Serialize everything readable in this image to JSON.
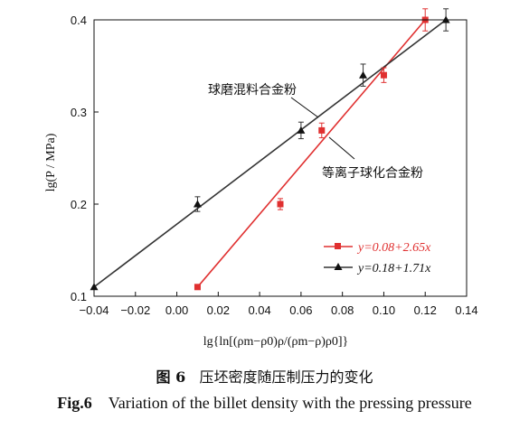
{
  "chart_data": {
    "type": "scatter",
    "xlabel": "lg{ln[(ρm−ρ0)ρ/(ρm−ρ)ρ0]}",
    "ylabel": "lg(P / MPa)",
    "xlim": [
      -0.04,
      0.14
    ],
    "ylim": [
      0.1,
      0.4
    ],
    "x_ticks": [
      "−0.04",
      "−0.02",
      "0.00",
      "0.02",
      "0.04",
      "0.06",
      "0.08",
      "0.10",
      "0.12",
      "0.14"
    ],
    "y_ticks": [
      "0.1",
      "0.2",
      "0.3",
      "0.4"
    ],
    "series": [
      {
        "name": "等离子球化合金粉",
        "color": "#e03030",
        "marker": "square",
        "fit": "y=0.08+2.65x",
        "points": [
          {
            "x": 0.01,
            "y": 0.11,
            "err": 0.0
          },
          {
            "x": 0.05,
            "y": 0.2,
            "err": 0.006
          },
          {
            "x": 0.07,
            "y": 0.28,
            "err": 0.008
          },
          {
            "x": 0.1,
            "y": 0.34,
            "err": 0.008
          },
          {
            "x": 0.12,
            "y": 0.4,
            "err": 0.012
          }
        ]
      },
      {
        "name": "球磨混料合金粉",
        "color": "#333333",
        "marker": "triangle",
        "fit": "y=0.18+1.71x",
        "points": [
          {
            "x": -0.04,
            "y": 0.11,
            "err": 0.0
          },
          {
            "x": 0.01,
            "y": 0.2,
            "err": 0.008
          },
          {
            "x": 0.06,
            "y": 0.28,
            "err": 0.009
          },
          {
            "x": 0.09,
            "y": 0.34,
            "err": 0.012
          },
          {
            "x": 0.13,
            "y": 0.4,
            "err": 0.012
          }
        ]
      }
    ],
    "fit_lines": [
      {
        "color": "#e03030",
        "from": [
          0.01,
          0.11
        ],
        "to": [
          0.12,
          0.4
        ]
      },
      {
        "color": "#333333",
        "from": [
          -0.04,
          0.11
        ],
        "to": [
          0.13,
          0.4
        ]
      }
    ],
    "annotations": [
      {
        "text": "球磨混料合金粉",
        "series": 1
      },
      {
        "text": "等离子球化合金粉",
        "series": 0
      }
    ],
    "legend": {
      "placement": "bottom-right",
      "entries": [
        {
          "series": 0,
          "label": "y=0.08+2.65x"
        },
        {
          "series": 1,
          "label": "y=0.18+1.71x"
        }
      ]
    },
    "grid": false
  },
  "caption": {
    "zh_num": "图 6",
    "zh_text": "压坯密度随压制压力的变化",
    "en_num": "Fig.6",
    "en_text": "Variation of the billet density with the pressing pressure"
  }
}
